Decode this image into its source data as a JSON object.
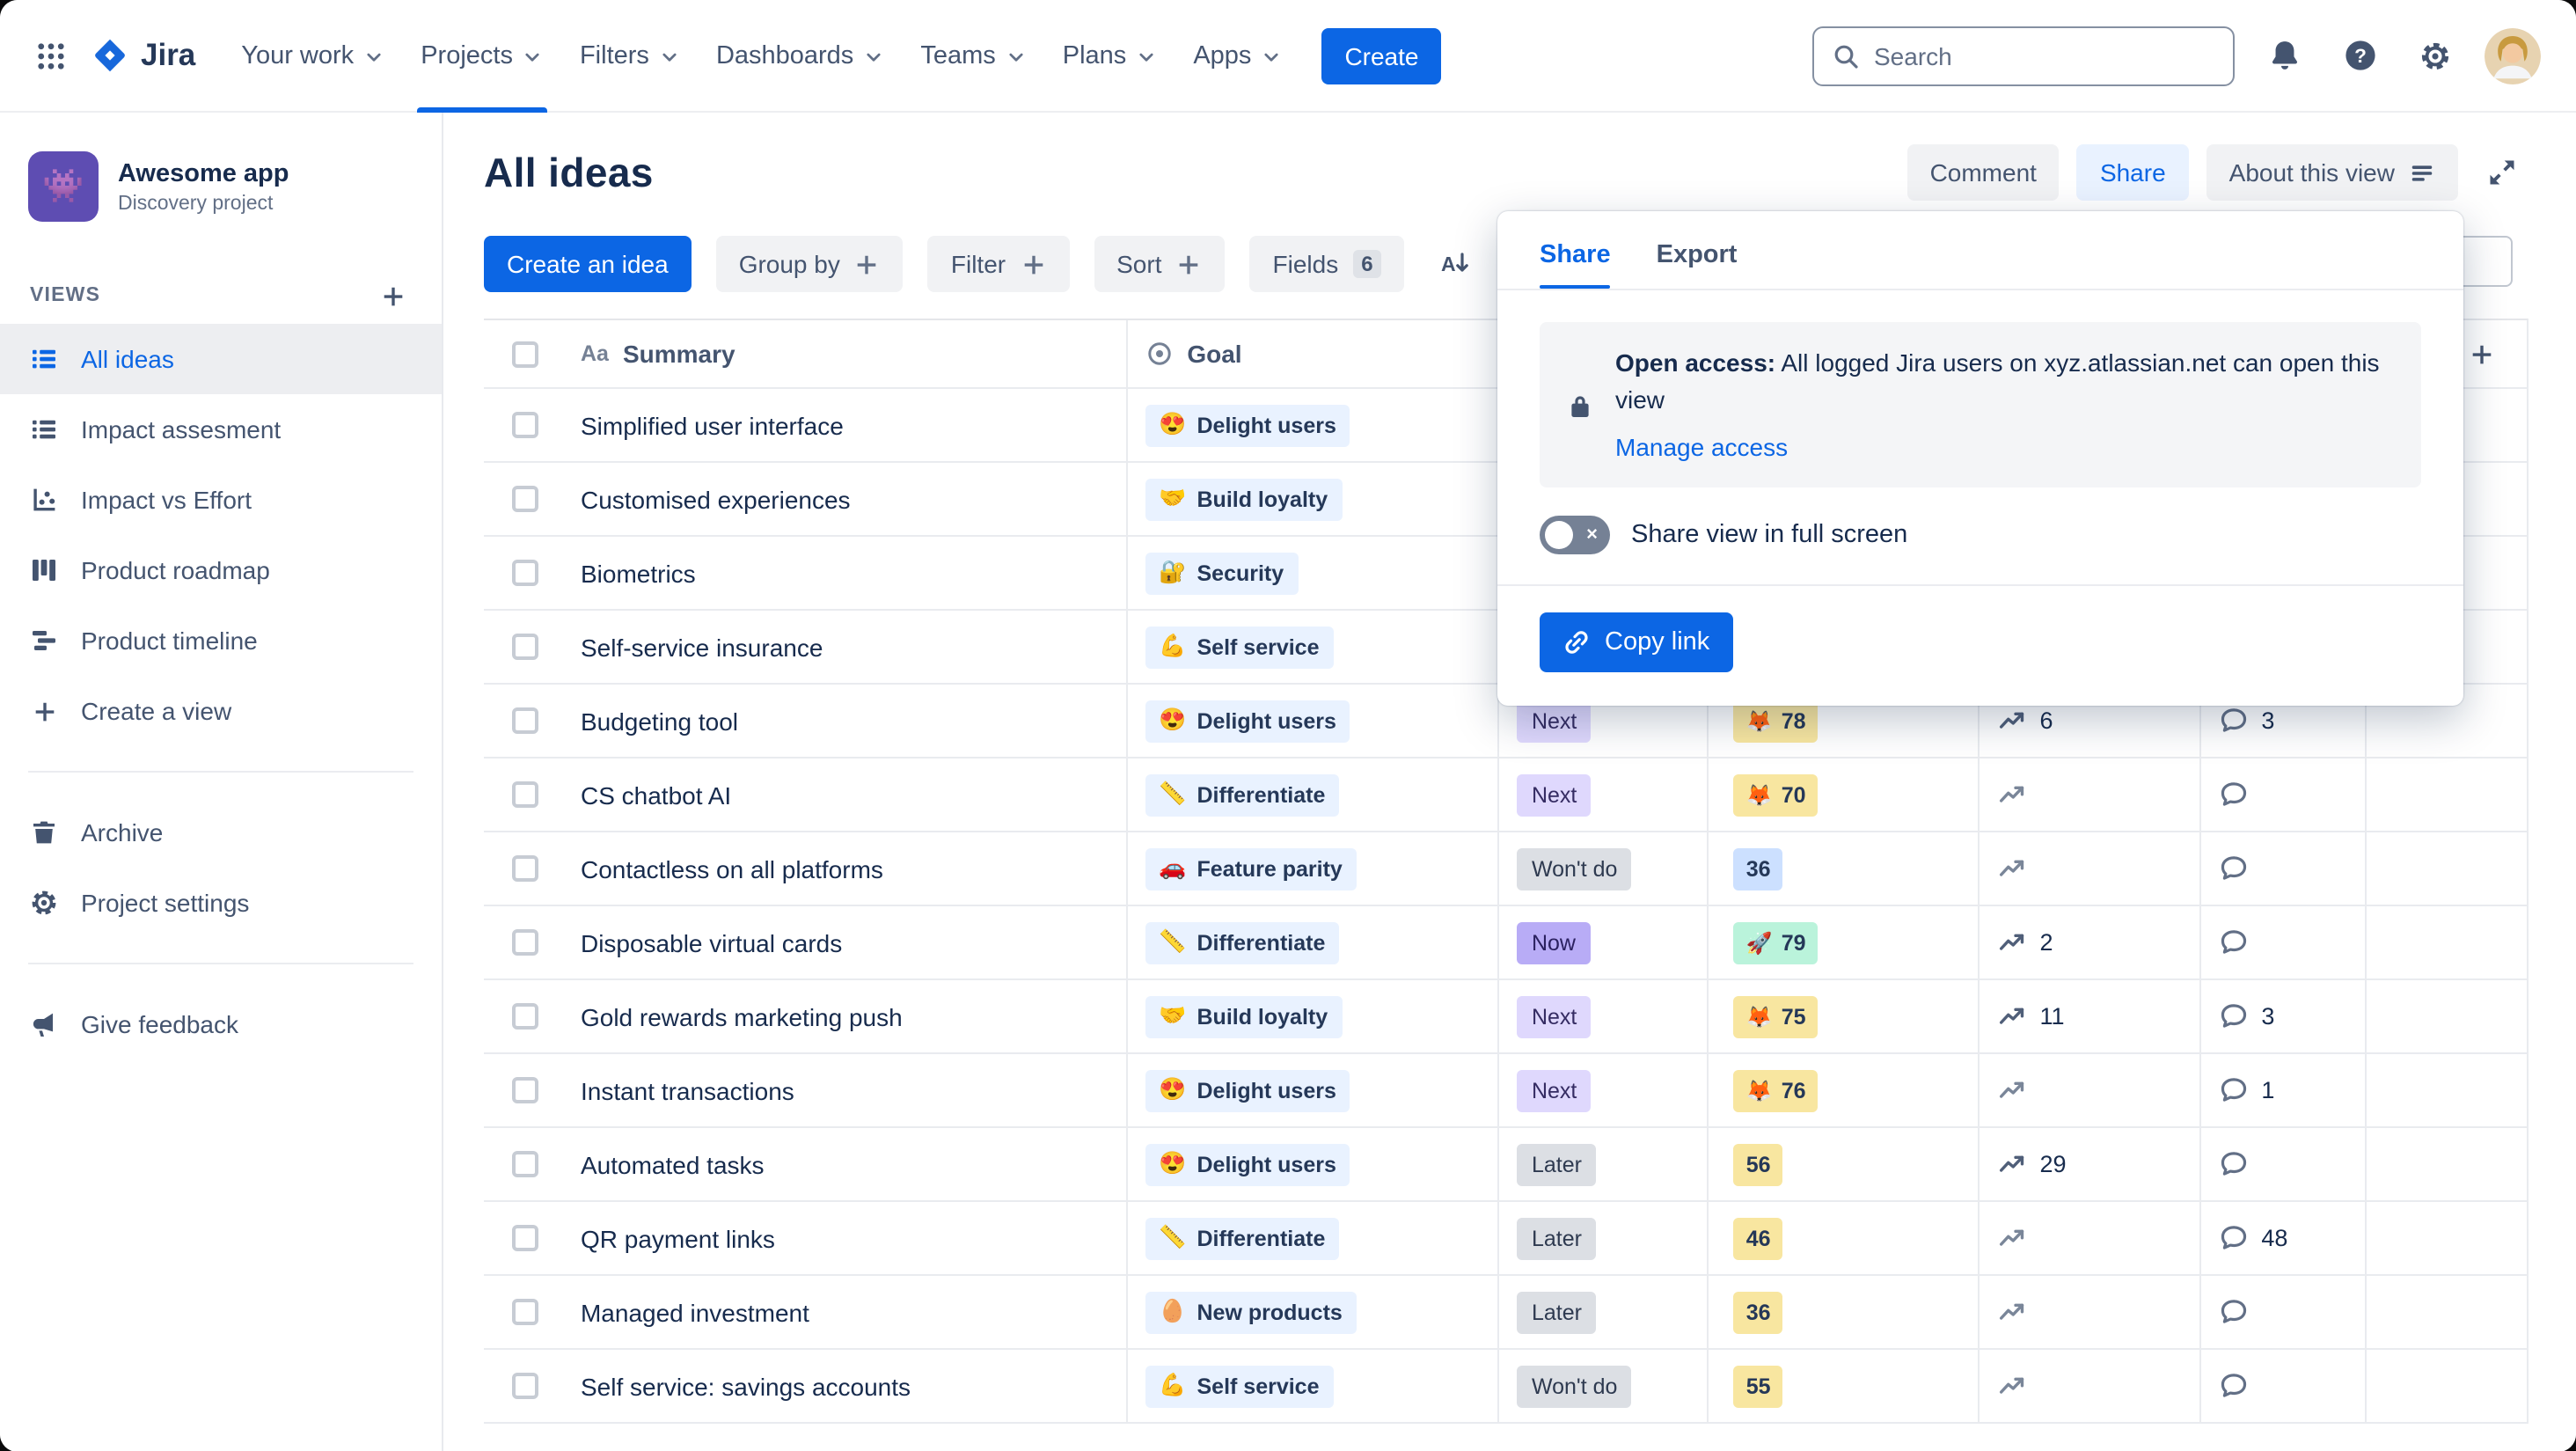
{
  "nav": {
    "logo_text": "Jira",
    "items": [
      {
        "label": "Your work"
      },
      {
        "label": "Projects",
        "active": true
      },
      {
        "label": "Filters"
      },
      {
        "label": "Dashboards"
      },
      {
        "label": "Teams"
      },
      {
        "label": "Plans"
      },
      {
        "label": "Apps"
      }
    ],
    "create_label": "Create",
    "search_placeholder": "Search"
  },
  "sidebar": {
    "project_name": "Awesome app",
    "project_type": "Discovery project",
    "project_avatar_emoji": "👾",
    "views_label": "VIEWS",
    "views": [
      {
        "label": "All ideas",
        "icon": "list-icon",
        "selected": true
      },
      {
        "label": "Impact assesment",
        "icon": "list-icon"
      },
      {
        "label": "Impact vs Effort",
        "icon": "scatter-icon"
      },
      {
        "label": "Product roadmap",
        "icon": "board-icon"
      },
      {
        "label": "Product timeline",
        "icon": "timeline-icon"
      },
      {
        "label": "Create a view",
        "icon": "plus-icon"
      }
    ],
    "tools": [
      {
        "label": "Archive",
        "icon": "archive-icon"
      },
      {
        "label": "Project settings",
        "icon": "gear-icon"
      }
    ],
    "feedback": {
      "label": "Give feedback",
      "icon": "megaphone-icon"
    }
  },
  "header": {
    "title": "All ideas",
    "comment_label": "Comment",
    "share_label": "Share",
    "about_label": "About this view"
  },
  "toolbar": {
    "create_idea_label": "Create an idea",
    "group_by_label": "Group by",
    "filter_label": "Filter",
    "sort_label": "Sort",
    "fields_label": "Fields",
    "fields_count": "6"
  },
  "table": {
    "header": {
      "summary": "Summary",
      "goal": "Goal"
    },
    "rows": [
      {
        "summary": "Simplified user interface",
        "goal": {
          "emoji": "😍",
          "label": "Delight users"
        },
        "status": null,
        "score": null,
        "trend": null,
        "comments": null
      },
      {
        "summary": "Customised experiences",
        "goal": {
          "emoji": "🤝",
          "label": "Build loyalty"
        },
        "status": null,
        "score": null,
        "trend": null,
        "comments": null
      },
      {
        "summary": "Biometrics",
        "goal": {
          "emoji": "🔐",
          "label": "Security"
        },
        "status": null,
        "score": null,
        "trend": null,
        "comments": null
      },
      {
        "summary": "Self-service insurance",
        "goal": {
          "emoji": "💪",
          "label": "Self service"
        },
        "status": null,
        "score": null,
        "trend": null,
        "comments": null
      },
      {
        "summary": "Budgeting tool",
        "goal": {
          "emoji": "😍",
          "label": "Delight users"
        },
        "status": {
          "label": "Next",
          "color": "purple"
        },
        "score": {
          "emoji": "🦊",
          "value": "78",
          "color": "yellow"
        },
        "trend": "6",
        "comments": "3"
      },
      {
        "summary": "CS chatbot AI",
        "goal": {
          "emoji": "📏",
          "label": "Differentiate"
        },
        "status": {
          "label": "Next",
          "color": "purple"
        },
        "score": {
          "emoji": "🦊",
          "value": "70",
          "color": "yellow"
        },
        "trend": "",
        "comments": ""
      },
      {
        "summary": "Contactless on all platforms",
        "goal": {
          "emoji": "🚗",
          "label": "Feature parity"
        },
        "status": {
          "label": "Won't do",
          "color": "gray"
        },
        "score": {
          "emoji": "",
          "value": "36",
          "color": "blue"
        },
        "trend": "",
        "comments": ""
      },
      {
        "summary": "Disposable virtual cards",
        "goal": {
          "emoji": "📏",
          "label": "Differentiate"
        },
        "status": {
          "label": "Now",
          "color": "purple-strong"
        },
        "score": {
          "emoji": "🚀",
          "value": "79",
          "color": "green"
        },
        "trend": "2",
        "comments": ""
      },
      {
        "summary": "Gold rewards marketing push",
        "goal": {
          "emoji": "🤝",
          "label": "Build loyalty"
        },
        "status": {
          "label": "Next",
          "color": "purple"
        },
        "score": {
          "emoji": "🦊",
          "value": "75",
          "color": "yellow"
        },
        "trend": "11",
        "comments": "3"
      },
      {
        "summary": "Instant transactions",
        "goal": {
          "emoji": "😍",
          "label": "Delight users"
        },
        "status": {
          "label": "Next",
          "color": "purple"
        },
        "score": {
          "emoji": "🦊",
          "value": "76",
          "color": "yellow"
        },
        "trend": "",
        "comments": "1"
      },
      {
        "summary": "Automated tasks",
        "goal": {
          "emoji": "😍",
          "label": "Delight users"
        },
        "status": {
          "label": "Later",
          "color": "gray"
        },
        "score": {
          "emoji": "",
          "value": "56",
          "color": "yellow"
        },
        "trend": "29",
        "comments": ""
      },
      {
        "summary": "QR payment links",
        "goal": {
          "emoji": "📏",
          "label": "Differentiate"
        },
        "status": {
          "label": "Later",
          "color": "gray"
        },
        "score": {
          "emoji": "",
          "value": "46",
          "color": "yellow"
        },
        "trend": "",
        "comments": "48"
      },
      {
        "summary": "Managed investment",
        "goal": {
          "emoji": "🥚",
          "label": "New products"
        },
        "status": {
          "label": "Later",
          "color": "gray"
        },
        "score": {
          "emoji": "",
          "value": "36",
          "color": "yellow"
        },
        "trend": "",
        "comments": ""
      },
      {
        "summary": "Self service: savings accounts",
        "goal": {
          "emoji": "💪",
          "label": "Self service"
        },
        "status": {
          "label": "Won't do",
          "color": "gray"
        },
        "score": {
          "emoji": "",
          "value": "55",
          "color": "yellow"
        },
        "trend": "",
        "comments": ""
      }
    ]
  },
  "popup": {
    "tabs": [
      "Share",
      "Export"
    ],
    "access_bold": "Open access:",
    "access_text": "All logged Jira users on xyz.atlassian.net can open this view",
    "manage_link": "Manage access",
    "toggle_label": "Share view in full screen",
    "toggle_on": false,
    "copy_link_label": "Copy link"
  },
  "colors": {
    "brand-blue": "#0C66E4",
    "share-selected-bg": "#E9F2FF",
    "goal-chip-bg": "#E9F2FF",
    "status-purple-bg": "#DFD8FD",
    "status-purple-strong-bg": "#B8ACF6",
    "status-gray-bg": "#DCDFE4",
    "score-yellow-bg": "#F8E6A0",
    "score-green-bg": "#BAF3DB",
    "score-blue-bg": "#CCE0FF"
  }
}
